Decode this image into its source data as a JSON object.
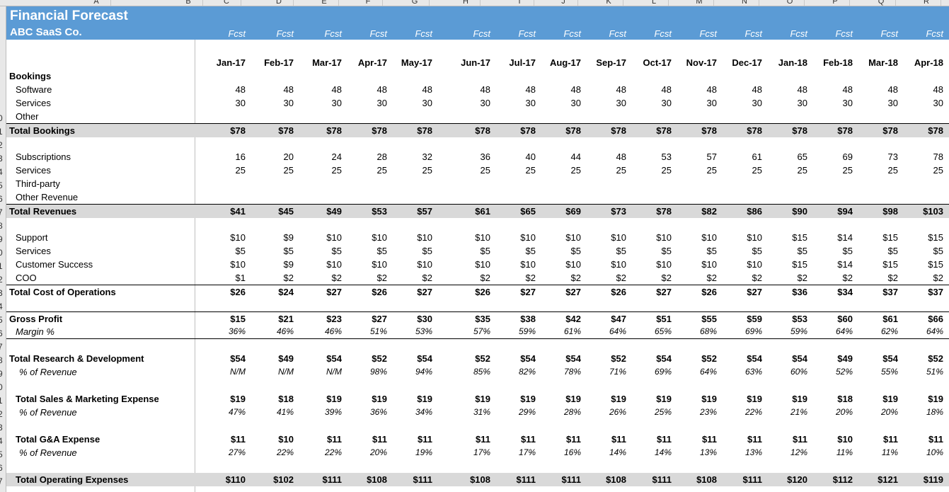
{
  "column_letters": [
    "A",
    "B",
    "C",
    "D",
    "E",
    "F",
    "G",
    "H",
    "I",
    "J",
    "K",
    "L",
    "M",
    "N",
    "O",
    "P",
    "Q",
    "R"
  ],
  "row_numbers": [
    "",
    "",
    "",
    "",
    "",
    "",
    "",
    "",
    "0",
    "1",
    "2",
    "3",
    "4",
    "5",
    "6",
    "7",
    "8",
    "9",
    "0",
    "1",
    "2",
    "3",
    "4",
    "5",
    "6",
    "7",
    "8",
    "9",
    "0",
    "1",
    "2",
    "3",
    "4",
    "5",
    "6",
    "7"
  ],
  "title": "Financial Forecast",
  "subtitle": "ABC SaaS Co.",
  "fcst_labels": [
    "Fcst",
    "Fcst",
    "Fcst",
    "Fcst",
    "Fcst",
    "Fcst",
    "Fcst",
    "Fcst",
    "Fcst",
    "Fcst",
    "Fcst",
    "Fcst",
    "Fcst",
    "Fcst",
    "Fcst",
    "Fcst"
  ],
  "months": [
    "Jan-17",
    "Feb-17",
    "Mar-17",
    "Apr-17",
    "May-17",
    "Jun-17",
    "Jul-17",
    "Aug-17",
    "Sep-17",
    "Oct-17",
    "Nov-17",
    "Dec-17",
    "Jan-18",
    "Feb-18",
    "Mar-18",
    "Apr-18"
  ],
  "rows": [
    {
      "label": "Bookings",
      "bold": true,
      "indent": 0,
      "values": []
    },
    {
      "label": "Software",
      "indent": 1,
      "values": [
        "48",
        "48",
        "48",
        "48",
        "48",
        "48",
        "48",
        "48",
        "48",
        "48",
        "48",
        "48",
        "48",
        "48",
        "48",
        "48"
      ]
    },
    {
      "label": "Services",
      "indent": 1,
      "values": [
        "30",
        "30",
        "30",
        "30",
        "30",
        "30",
        "30",
        "30",
        "30",
        "30",
        "30",
        "30",
        "30",
        "30",
        "30",
        "30"
      ]
    },
    {
      "label": "Other",
      "indent": 1,
      "values": []
    },
    {
      "label": "Total Bookings",
      "bold": true,
      "indent": 0,
      "shade": true,
      "tline": true,
      "values": [
        "$78",
        "$78",
        "$78",
        "$78",
        "$78",
        "$78",
        "$78",
        "$78",
        "$78",
        "$78",
        "$78",
        "$78",
        "$78",
        "$78",
        "$78",
        "$78"
      ]
    },
    {
      "label": "",
      "values": []
    },
    {
      "label": "Subscriptions",
      "indent": 1,
      "values": [
        "16",
        "20",
        "24",
        "28",
        "32",
        "36",
        "40",
        "44",
        "48",
        "53",
        "57",
        "61",
        "65",
        "69",
        "73",
        "78"
      ]
    },
    {
      "label": "Services",
      "indent": 1,
      "values": [
        "25",
        "25",
        "25",
        "25",
        "25",
        "25",
        "25",
        "25",
        "25",
        "25",
        "25",
        "25",
        "25",
        "25",
        "25",
        "25"
      ]
    },
    {
      "label": "Third-party",
      "indent": 1,
      "values": []
    },
    {
      "label": "Other Revenue",
      "indent": 1,
      "values": []
    },
    {
      "label": "Total Revenues",
      "bold": true,
      "indent": 0,
      "shade": true,
      "tline": true,
      "values": [
        "$41",
        "$45",
        "$49",
        "$53",
        "$57",
        "$61",
        "$65",
        "$69",
        "$73",
        "$78",
        "$82",
        "$86",
        "$90",
        "$94",
        "$98",
        "$103"
      ]
    },
    {
      "label": "",
      "values": []
    },
    {
      "label": "Support",
      "indent": 1,
      "values": [
        "$10",
        "$9",
        "$10",
        "$10",
        "$10",
        "$10",
        "$10",
        "$10",
        "$10",
        "$10",
        "$10",
        "$10",
        "$15",
        "$14",
        "$15",
        "$15"
      ]
    },
    {
      "label": "Services",
      "indent": 1,
      "values": [
        "$5",
        "$5",
        "$5",
        "$5",
        "$5",
        "$5",
        "$5",
        "$5",
        "$5",
        "$5",
        "$5",
        "$5",
        "$5",
        "$5",
        "$5",
        "$5"
      ]
    },
    {
      "label": "Customer Success",
      "indent": 1,
      "values": [
        "$10",
        "$9",
        "$10",
        "$10",
        "$10",
        "$10",
        "$10",
        "$10",
        "$10",
        "$10",
        "$10",
        "$10",
        "$15",
        "$14",
        "$15",
        "$15"
      ]
    },
    {
      "label": "COO",
      "indent": 1,
      "values": [
        "$1",
        "$2",
        "$2",
        "$2",
        "$2",
        "$2",
        "$2",
        "$2",
        "$2",
        "$2",
        "$2",
        "$2",
        "$2",
        "$2",
        "$2",
        "$2"
      ]
    },
    {
      "label": "Total Cost of Operations",
      "bold": true,
      "indent": 0,
      "tline": true,
      "values": [
        "$26",
        "$24",
        "$27",
        "$26",
        "$27",
        "$26",
        "$27",
        "$27",
        "$26",
        "$27",
        "$26",
        "$27",
        "$36",
        "$34",
        "$37",
        "$37"
      ]
    },
    {
      "label": "",
      "values": []
    },
    {
      "label": "Gross Profit",
      "bold": true,
      "indent": 0,
      "tline": true,
      "values": [
        "$15",
        "$21",
        "$23",
        "$27",
        "$30",
        "$35",
        "$38",
        "$42",
        "$47",
        "$51",
        "$55",
        "$59",
        "$53",
        "$60",
        "$61",
        "$66"
      ]
    },
    {
      "label": "Margin %",
      "indent": 1,
      "italic": true,
      "bline": true,
      "values": [
        "36%",
        "46%",
        "46%",
        "51%",
        "53%",
        "57%",
        "59%",
        "61%",
        "64%",
        "65%",
        "68%",
        "69%",
        "59%",
        "64%",
        "62%",
        "64%"
      ]
    },
    {
      "label": "",
      "values": []
    },
    {
      "label": "Total Research & Development",
      "bold": true,
      "indent": 0,
      "values": [
        "$54",
        "$49",
        "$54",
        "$52",
        "$54",
        "$52",
        "$54",
        "$54",
        "$52",
        "$54",
        "$52",
        "$54",
        "$54",
        "$49",
        "$54",
        "$52"
      ]
    },
    {
      "label": "% of Revenue",
      "indent": 2,
      "italic": true,
      "values": [
        "N/M",
        "N/M",
        "N/M",
        "98%",
        "94%",
        "85%",
        "82%",
        "78%",
        "71%",
        "69%",
        "64%",
        "63%",
        "60%",
        "52%",
        "55%",
        "51%"
      ]
    },
    {
      "label": "",
      "values": []
    },
    {
      "label": "Total Sales & Marketing Expense",
      "bold": true,
      "indent": 1,
      "values": [
        "$19",
        "$18",
        "$19",
        "$19",
        "$19",
        "$19",
        "$19",
        "$19",
        "$19",
        "$19",
        "$19",
        "$19",
        "$19",
        "$18",
        "$19",
        "$19"
      ]
    },
    {
      "label": "% of Revenue",
      "indent": 2,
      "italic": true,
      "values": [
        "47%",
        "41%",
        "39%",
        "36%",
        "34%",
        "31%",
        "29%",
        "28%",
        "26%",
        "25%",
        "23%",
        "22%",
        "21%",
        "20%",
        "20%",
        "18%"
      ]
    },
    {
      "label": "",
      "values": []
    },
    {
      "label": "Total G&A Expense",
      "bold": true,
      "indent": 1,
      "values": [
        "$11",
        "$10",
        "$11",
        "$11",
        "$11",
        "$11",
        "$11",
        "$11",
        "$11",
        "$11",
        "$11",
        "$11",
        "$11",
        "$10",
        "$11",
        "$11"
      ]
    },
    {
      "label": "% of Revenue",
      "indent": 2,
      "italic": true,
      "values": [
        "27%",
        "22%",
        "22%",
        "20%",
        "19%",
        "17%",
        "17%",
        "16%",
        "14%",
        "14%",
        "13%",
        "13%",
        "12%",
        "11%",
        "11%",
        "10%"
      ]
    },
    {
      "label": "",
      "values": []
    },
    {
      "label": "Total Operating Expenses",
      "bold": true,
      "indent": 1,
      "shade": true,
      "values": [
        "$110",
        "$102",
        "$111",
        "$108",
        "$111",
        "$108",
        "$111",
        "$111",
        "$108",
        "$111",
        "$108",
        "$111",
        "$120",
        "$112",
        "$121",
        "$119"
      ]
    }
  ]
}
